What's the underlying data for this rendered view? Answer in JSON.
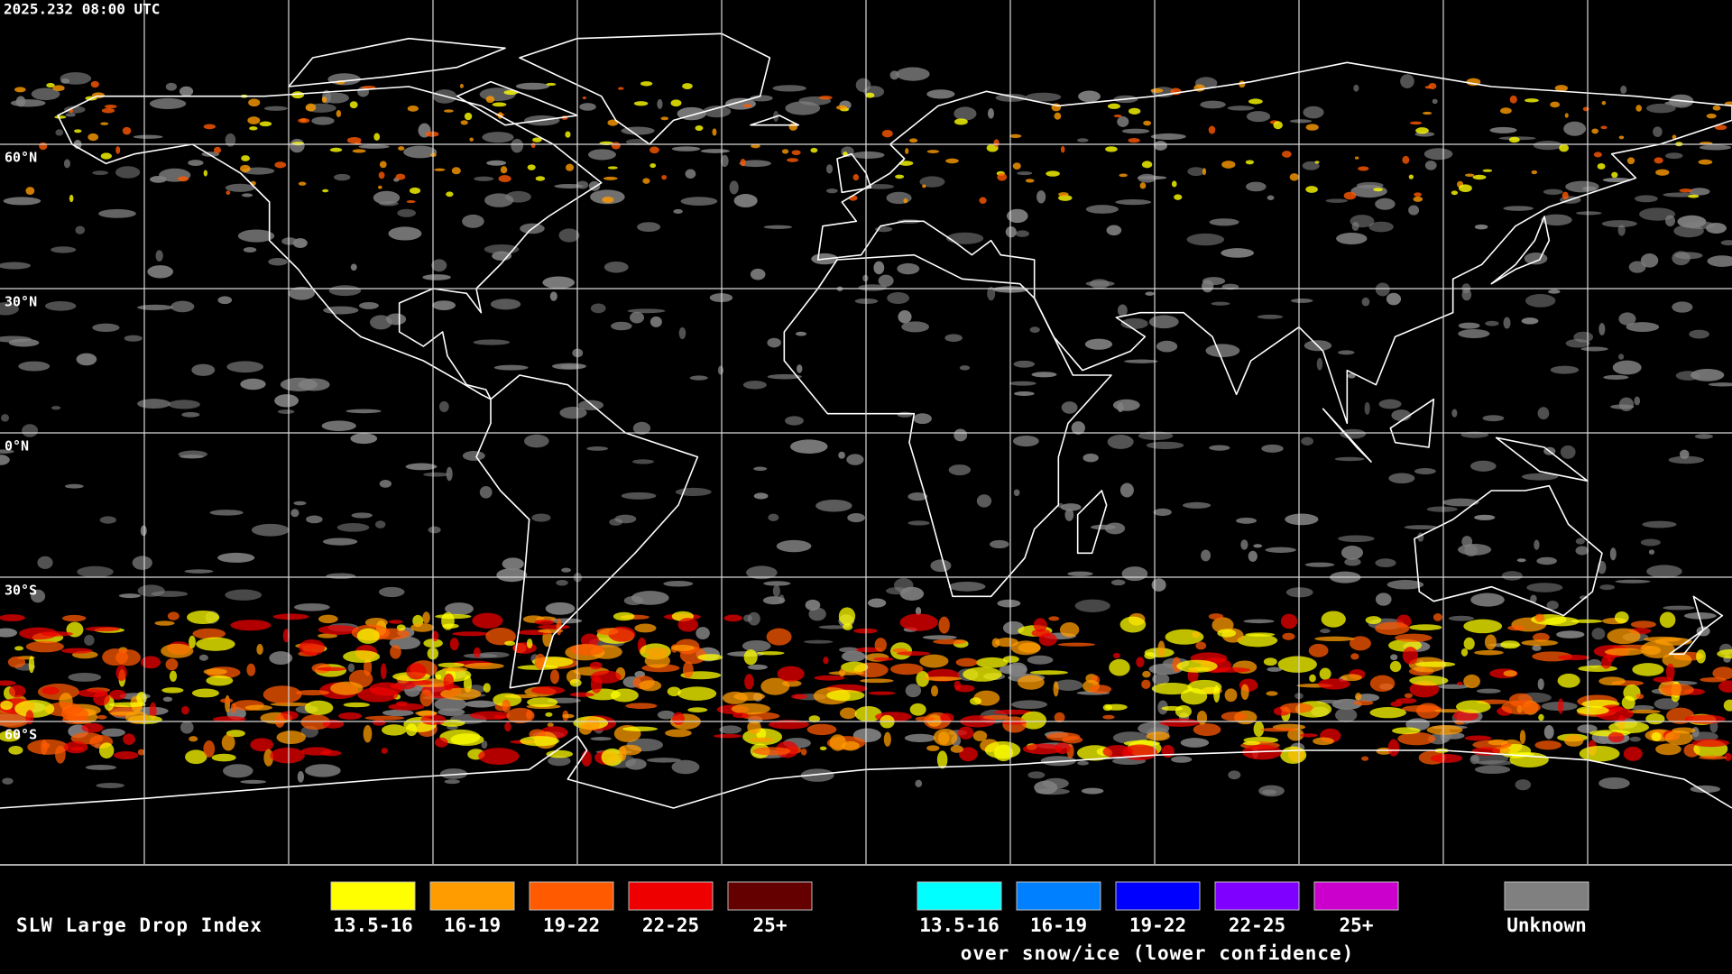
{
  "timestamp": "2025.232 08:00 UTC",
  "latitude_labels": [
    "60°N",
    "30°N",
    "0°N",
    "30°S",
    "60°S"
  ],
  "legend": {
    "title": "SLW Large Drop Index",
    "groups": [
      {
        "items": [
          {
            "label": "13.5-16",
            "color": "#ffff00"
          },
          {
            "label": "16-19",
            "color": "#ff9c00"
          },
          {
            "label": "19-22",
            "color": "#ff5a00"
          },
          {
            "label": "22-25",
            "color": "#ee0000"
          },
          {
            "label": "25+",
            "color": "#640000"
          }
        ]
      },
      {
        "items": [
          {
            "label": "13.5-16",
            "color": "#00ffff"
          },
          {
            "label": "16-19",
            "color": "#0080ff"
          },
          {
            "label": "19-22",
            "color": "#0000ff"
          },
          {
            "label": "22-25",
            "color": "#8000ff"
          },
          {
            "label": "25+",
            "color": "#cc00cc"
          }
        ],
        "caption": "over snow/ice (lower confidence)"
      },
      {
        "items": [
          {
            "label": "Unknown",
            "color": "#808080"
          }
        ]
      }
    ]
  }
}
